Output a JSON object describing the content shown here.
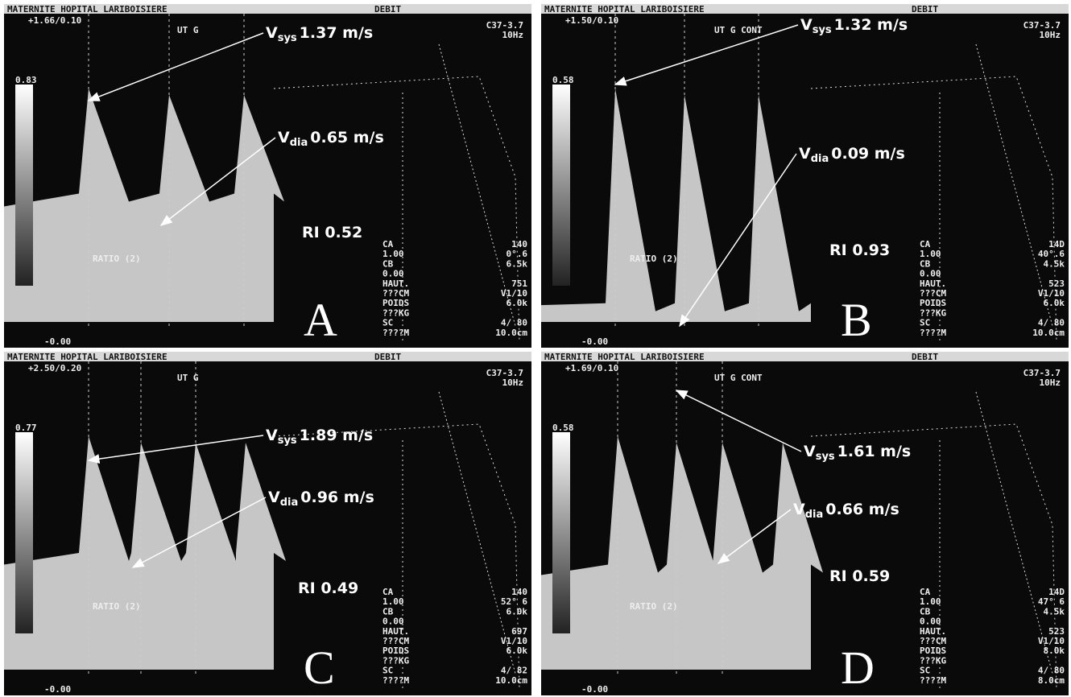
{
  "panels": [
    {
      "header": {
        "hospital": "MATERNITE HOPITAL LARIBOISIERE",
        "mode": "DEBIT"
      },
      "scale": "+1.66/0.10",
      "vessel": "UT G",
      "max": "0.83",
      "probe": "C37-3.7",
      "freq": "10Hz",
      "zero": "-0.00",
      "ratio": "RATIO (2)",
      "vsys": {
        "symbol": "V",
        "sub": "sys",
        "value": "1.37 m/s"
      },
      "vdia": {
        "symbol": "V",
        "sub": "dia",
        "value": "0.65 m/s"
      },
      "ri": "RI 0.52",
      "letter": "A",
      "settings": [
        {
          "l": "CA",
          "r": "140"
        },
        {
          "l": "1.00",
          "r": "0°.6"
        },
        {
          "l": "CB",
          "r": "6.5k"
        },
        {
          "l": "0.00"
        },
        {
          "l": "HAUT.",
          "r": "751"
        },
        {
          "l": "???CM",
          "r": "V1/10"
        },
        {
          "l": "POIDS",
          "r": "6.0k"
        },
        {
          "l": "???KG"
        },
        {
          "l": "SC",
          "r": "4/ 80"
        },
        {
          "l": "????M",
          "r": "10.0cm"
        }
      ]
    },
    {
      "header": {
        "hospital": "MATERNITE HOPITAL LARIBOISIERE",
        "mode": "DEBIT"
      },
      "scale": "+1.50/0.10",
      "vessel": "UT G CONT",
      "max": "0.58",
      "probe": "C37-3.7",
      "freq": "10Hz",
      "zero": "-0.00",
      "ratio": "RATIO (2)",
      "vsys": {
        "symbol": "V",
        "sub": "sys",
        "value": "1.32 m/s"
      },
      "vdia": {
        "symbol": "V",
        "sub": "dia",
        "value": "0.09 m/s"
      },
      "ri": "RI 0.93",
      "letter": "B",
      "settings": [
        {
          "l": "CA",
          "r": "14D"
        },
        {
          "l": "1.00",
          "r": "40°.6"
        },
        {
          "l": "CB",
          "r": "4.5k"
        },
        {
          "l": "0.00"
        },
        {
          "l": "HAUT.",
          "r": "523"
        },
        {
          "l": "???CM",
          "r": "V1/10"
        },
        {
          "l": "POIDS",
          "r": "6.0k"
        },
        {
          "l": "???KG"
        },
        {
          "l": "SC",
          "r": "4/ 80"
        },
        {
          "l": "????M",
          "r": "10.0cm"
        }
      ]
    },
    {
      "header": {
        "hospital": "MATERNITE HOPITAL LARIBOISIERE",
        "mode": "DEBIT"
      },
      "scale": "+2.50/0.20",
      "vessel": "UT G",
      "max": "0.77",
      "probe": "C37-3.7",
      "freq": "10Hz",
      "zero": "-0.00",
      "ratio": "RATIO (2)",
      "vsys": {
        "symbol": "V",
        "sub": "sys",
        "value": "1.89 m/s"
      },
      "vdia": {
        "symbol": "V",
        "sub": "dia",
        "value": "0.96 m/s"
      },
      "ri": "RI 0.49",
      "letter": "C",
      "settings": [
        {
          "l": "CA",
          "r": "140"
        },
        {
          "l": "1.00",
          "r": "52° 6"
        },
        {
          "l": "CB",
          "r": "6.0k"
        },
        {
          "l": "0.00"
        },
        {
          "l": "HAUT.",
          "r": "697"
        },
        {
          "l": "???CM",
          "r": "V1/10"
        },
        {
          "l": "POIDS",
          "r": "6.0k"
        },
        {
          "l": "???KG"
        },
        {
          "l": "SC",
          "r": "4/ 82"
        },
        {
          "l": "????M",
          "r": "10.0cm"
        }
      ]
    },
    {
      "header": {
        "hospital": "MATERNITE HOPITAL LARIBOISIERE",
        "mode": "DEBIT"
      },
      "scale": "+1.69/0.10",
      "vessel": "UT G CONT",
      "max": "0.58",
      "probe": "C37-3.7",
      "freq": "10Hz",
      "zero": "-0.00",
      "ratio": "RATIO (2)",
      "vsys": {
        "symbol": "V",
        "sub": "sys",
        "value": "1.61 m/s"
      },
      "vdia": {
        "symbol": "V",
        "sub": "dia",
        "value": "0.66 m/s"
      },
      "ri": "RI 0.59",
      "letter": "D",
      "settings": [
        {
          "l": "CA",
          "r": "14D"
        },
        {
          "l": "1.00",
          "r": "47° 6"
        },
        {
          "l": "CB",
          "r": "4.5k"
        },
        {
          "l": "0.00"
        },
        {
          "l": "HAUT.",
          "r": "523"
        },
        {
          "l": "???CM",
          "r": "V1/10"
        },
        {
          "l": "POIDS",
          "r": "8.0k"
        },
        {
          "l": "???KG"
        },
        {
          "l": "SC",
          "r": "4/ 80"
        },
        {
          "l": "????M",
          "r": "8.0cm"
        }
      ]
    }
  ]
}
